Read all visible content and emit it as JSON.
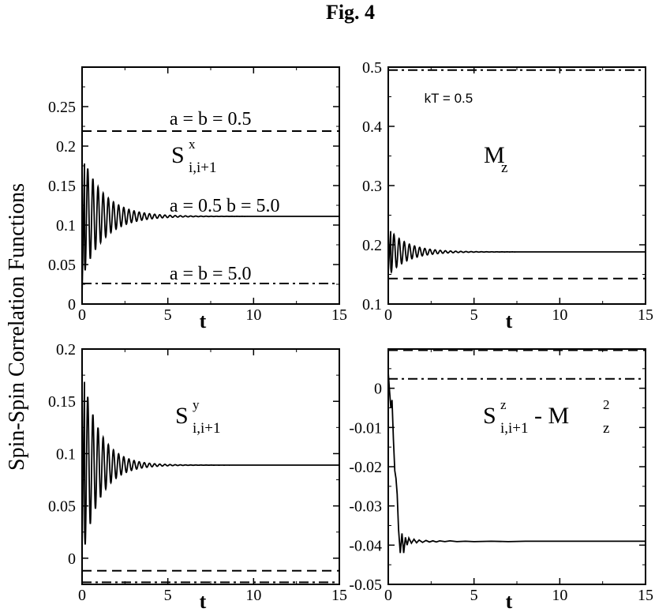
{
  "figure_title": "Fig. 4",
  "ylabel": "Spin-Spin Correlation Functions",
  "chart_data": [
    {
      "type": "line",
      "panel": "top-left",
      "xlabel": "t",
      "xlim": [
        0,
        15
      ],
      "ylim": [
        0,
        0.3
      ],
      "xticks": [
        0,
        5,
        10,
        15
      ],
      "yticks": [
        0,
        0.05,
        0.1,
        0.15,
        0.2,
        0.25
      ],
      "xtick_labels": [
        "0",
        "5",
        "10",
        "15"
      ],
      "ytick_labels": [
        "0",
        "0.05",
        "0.1",
        "0.15",
        "0.2",
        "0.25"
      ],
      "label": {
        "main": "S",
        "sub": "i,i+1",
        "sup": "x"
      },
      "annotations": [
        {
          "text": "a = b = 0.5",
          "x": 5.1,
          "y": 0.227
        },
        {
          "text": "a = 0.5  b = 5.0",
          "x": 5.1,
          "y": 0.117
        },
        {
          "text": "a = b = 5.0",
          "x": 5.1,
          "y": 0.031
        }
      ],
      "series": [
        {
          "style": "dashed",
          "x": [
            0,
            15
          ],
          "y": [
            0.219,
            0.219
          ]
        },
        {
          "style": "solid",
          "oscillating": true,
          "initial": 0.01,
          "first_peak": 0.19,
          "steady": 0.111,
          "decay": 0.8,
          "period": 0.3
        },
        {
          "style": "dash-dot",
          "x": [
            0,
            15
          ],
          "y": [
            0.026,
            0.026
          ]
        }
      ]
    },
    {
      "type": "line",
      "panel": "top-right",
      "xlabel": "t",
      "xlim": [
        0,
        15
      ],
      "ylim": [
        0.1,
        0.5
      ],
      "xticks": [
        0,
        5,
        10,
        15
      ],
      "yticks": [
        0.1,
        0.2,
        0.3,
        0.4,
        0.5
      ],
      "xtick_labels": [
        "0",
        "5",
        "10",
        "15"
      ],
      "ytick_labels": [
        "0.1",
        "0.2",
        "0.3",
        "0.4",
        "0.5"
      ],
      "label": {
        "main": "M",
        "sub": "z",
        "sup": ""
      },
      "annotations": [
        {
          "text": "kT = 0.5",
          "x": 2.1,
          "y": 0.44
        }
      ],
      "series": [
        {
          "style": "dash-dot",
          "x": [
            0,
            15
          ],
          "y": [
            0.495,
            0.495
          ]
        },
        {
          "style": "solid",
          "oscillating": true,
          "initial": 0.155,
          "first_peak": 0.228,
          "steady": 0.188,
          "decay": 0.9,
          "period": 0.3
        },
        {
          "style": "dashed",
          "x": [
            0,
            15
          ],
          "y": [
            0.143,
            0.143
          ]
        }
      ]
    },
    {
      "type": "line",
      "panel": "bottom-left",
      "xlabel": "t",
      "xlim": [
        0,
        15
      ],
      "ylim": [
        -0.025,
        0.2
      ],
      "xticks": [
        0,
        5,
        10,
        15
      ],
      "yticks": [
        0,
        0.05,
        0.1,
        0.15,
        0.2
      ],
      "xtick_labels": [
        "0",
        "5",
        "10",
        "15"
      ],
      "ytick_labels": [
        "0",
        "0.05",
        "0.1",
        "0.15",
        "0.2"
      ],
      "label": {
        "main": "S",
        "sub": "i,i+1",
        "sup": "y"
      },
      "annotations": [],
      "series": [
        {
          "style": "solid",
          "oscillating": true,
          "initial": 0.01,
          "first_peak": 0.18,
          "steady": 0.089,
          "decay": 1.0,
          "period": 0.3
        },
        {
          "style": "dashed",
          "x": [
            0,
            15
          ],
          "y": [
            -0.012,
            -0.012
          ]
        },
        {
          "style": "dash-dot",
          "x": [
            0,
            15
          ],
          "y": [
            -0.023,
            -0.023
          ]
        }
      ]
    },
    {
      "type": "line",
      "panel": "bottom-right",
      "xlabel": "t",
      "xlim": [
        0,
        15
      ],
      "ylim": [
        -0.05,
        0.01
      ],
      "xticks": [
        0,
        5,
        10,
        15
      ],
      "yticks": [
        -0.05,
        -0.04,
        -0.03,
        -0.02,
        -0.01,
        0
      ],
      "xtick_labels": [
        "0",
        "5",
        "10",
        "15"
      ],
      "ytick_labels": [
        "-0.05",
        "-0.04",
        "-0.03",
        "-0.02",
        "-0.01",
        "0"
      ],
      "label": {
        "main": "S",
        "sub": "i,i+1",
        "sup": "z",
        "suffix_main": " - M",
        "suffix_sub": "z",
        "suffix_sup": "2"
      },
      "annotations": [],
      "series": [
        {
          "style": "dashed",
          "x": [
            0,
            15
          ],
          "y": [
            0.0097,
            0.0097
          ]
        },
        {
          "style": "dash-dot",
          "x": [
            0,
            15
          ],
          "y": [
            0.0024,
            0.0024
          ]
        },
        {
          "style": "solid",
          "x": [
            0,
            0.08,
            0.15,
            0.22,
            0.3,
            0.38,
            0.45,
            0.52,
            0.6,
            0.7,
            0.8,
            0.9,
            1.0,
            1.1,
            1.2,
            1.35,
            1.5,
            1.65,
            1.8,
            2.0,
            2.2,
            2.4,
            2.6,
            2.8,
            3.0,
            3.3,
            3.6,
            4.0,
            4.5,
            5.0,
            6,
            7,
            8,
            9,
            10,
            11,
            12,
            13,
            14,
            15
          ],
          "y": [
            0.004,
            -0.001,
            -0.005,
            -0.003,
            -0.013,
            -0.021,
            -0.023,
            -0.027,
            -0.036,
            -0.042,
            -0.037,
            -0.042,
            -0.038,
            -0.04,
            -0.0382,
            -0.0395,
            -0.0385,
            -0.0394,
            -0.0387,
            -0.0393,
            -0.0388,
            -0.0392,
            -0.0389,
            -0.0392,
            -0.0389,
            -0.0391,
            -0.0389,
            -0.0391,
            -0.039,
            -0.0391,
            -0.039,
            -0.0391,
            -0.039,
            -0.039,
            -0.039,
            -0.039,
            -0.039,
            -0.039,
            -0.039,
            -0.039
          ]
        }
      ]
    }
  ]
}
